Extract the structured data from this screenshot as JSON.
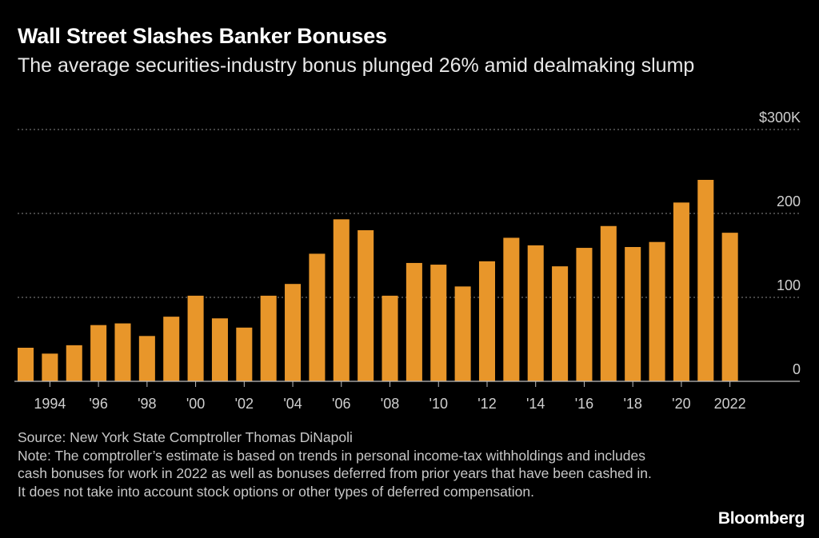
{
  "header": {
    "title": "Wall Street Slashes Banker Bonuses",
    "subtitle": "The average securities-industry bonus plunged 26% amid dealmaking slump"
  },
  "footer": {
    "source": "Source: New York State Comptroller Thomas DiNapoli",
    "note": "Note: The comptroller’s estimate is based on trends in personal income-tax withholdings and includes cash bonuses for work in 2022 as well as bonuses deferred from prior years that have been cashed in. It does not take into account stock options or other types of deferred compensation."
  },
  "brand": "Bloomberg",
  "colors": {
    "bar": "#E8962A",
    "background": "#000000",
    "grid": "#8a8a8a",
    "text": "#ffffff"
  },
  "chart_data": {
    "type": "bar",
    "title": "Wall Street Slashes Banker Bonuses",
    "subtitle": "The average securities-industry bonus plunged 26% amid dealmaking slump",
    "xlabel": "",
    "ylabel": "",
    "categories": [
      1993,
      1994,
      1995,
      1996,
      1997,
      1998,
      1999,
      2000,
      2001,
      2002,
      2003,
      2004,
      2005,
      2006,
      2007,
      2008,
      2009,
      2010,
      2011,
      2012,
      2013,
      2014,
      2015,
      2016,
      2017,
      2018,
      2019,
      2020,
      2021,
      2022
    ],
    "values": [
      40,
      33,
      43,
      67,
      69,
      54,
      77,
      102,
      75,
      64,
      102,
      116,
      152,
      193,
      180,
      102,
      141,
      139,
      113,
      143,
      171,
      162,
      137,
      159,
      185,
      160,
      166,
      213,
      240,
      177
    ],
    "ylim": [
      0,
      300
    ],
    "y_ticks": [
      0,
      100,
      200,
      300
    ],
    "y_tick_labels": [
      "0",
      "100",
      "200",
      "$300K"
    ],
    "x_tick_labels": [
      {
        "year": 1994,
        "label": "1994"
      },
      {
        "year": 1996,
        "label": "'96"
      },
      {
        "year": 1998,
        "label": "'98"
      },
      {
        "year": 2000,
        "label": "'00"
      },
      {
        "year": 2002,
        "label": "'02"
      },
      {
        "year": 2004,
        "label": "'04"
      },
      {
        "year": 2006,
        "label": "'06"
      },
      {
        "year": 2008,
        "label": "'08"
      },
      {
        "year": 2010,
        "label": "'10"
      },
      {
        "year": 2012,
        "label": "'12"
      },
      {
        "year": 2014,
        "label": "'14"
      },
      {
        "year": 2016,
        "label": "'16"
      },
      {
        "year": 2018,
        "label": "'18"
      },
      {
        "year": 2020,
        "label": "'20"
      },
      {
        "year": 2022,
        "label": "2022"
      }
    ],
    "grid": true,
    "y_axis_position": "right",
    "legend": "none"
  }
}
